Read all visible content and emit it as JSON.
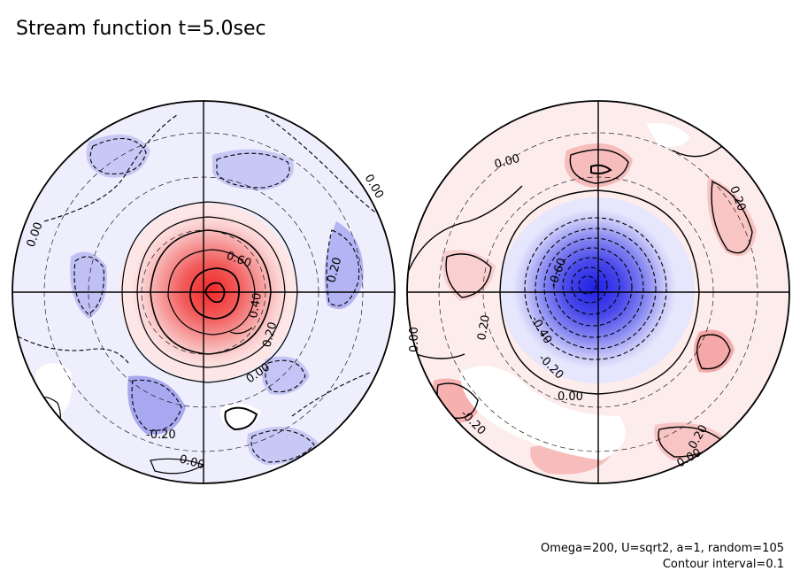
{
  "title": "Stream function t=5.0sec",
  "footer": {
    "params": "Omega=200, U=sqrt2, a=1, random=105",
    "interval": "Contour interval=0.1"
  },
  "colors": {
    "positive_max": "#f03030",
    "negative_max": "#2a2ae8",
    "light_pos": "#fde8e8",
    "light_neg": "#e8e8fb"
  },
  "left_hemisphere": {
    "contour_labels": [
      "0.00",
      "0.00",
      "0.60",
      "0.40",
      "0.20",
      "0.00",
      "0.20",
      "-0.20",
      "0.00"
    ]
  },
  "right_hemisphere": {
    "contour_labels": [
      "0.00",
      "0.20",
      "-0.60",
      "0.20",
      "-0.40",
      "-0.20",
      "0.00",
      "0.00",
      "-0.20",
      "0.20",
      "0.00"
    ]
  }
}
